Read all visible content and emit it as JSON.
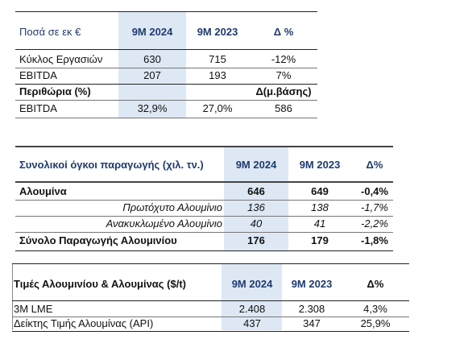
{
  "table1": {
    "header": {
      "label": "Ποσά σε εκ €",
      "col1": "9M 2024",
      "col2": "9M 2023",
      "col3": "Δ %"
    },
    "rows": [
      {
        "label": "Κύκλος Εργασιών",
        "v1": "630",
        "v2": "715",
        "v3": "-12%"
      },
      {
        "label": "EBITDA",
        "v1": "207",
        "v2": "193",
        "v3": "7%"
      }
    ],
    "subheader": {
      "label": "Περιθώρια (%)",
      "col3": "Δ(μ.βάσης)"
    },
    "margin_row": {
      "label": "EBITDA",
      "v1": "32,9%",
      "v2": "27,0%",
      "v3": "586"
    }
  },
  "table2": {
    "header": {
      "label": "Συνολικοί όγκοι παραγωγής (χιλ. τν.)",
      "col1": "9M 2024",
      "col2": "9M 2023",
      "col3": "Δ%"
    },
    "rows": [
      {
        "label": "Αλουμίνα",
        "v1": "646",
        "v2": "649",
        "v3": "-0,4%"
      },
      {
        "label": "Πρωτόχυτο Αλουμίνιο",
        "v1": "136",
        "v2": "138",
        "v3": "-1,7%"
      },
      {
        "label": "Ανακυκλωμένο Αλουμίνιο",
        "v1": "40",
        "v2": "41",
        "v3": "-2,2%"
      },
      {
        "label": "Σύνολο Παραγωγής Αλουμινίου",
        "v1": "176",
        "v2": "179",
        "v3": "-1,8%"
      }
    ]
  },
  "table3": {
    "header": {
      "label": "Τιμές Αλουμινίου & Αλουμίνας ($/t)",
      "col1": "9M 2024",
      "col2": "9M 2023",
      "col3": "Δ%"
    },
    "rows": [
      {
        "label": "3M LME",
        "v1": "2.408",
        "v2": "2.308",
        "v3": "4,3%"
      },
      {
        "label": "Δείκτης Τιμής Αλουμίνας (API)",
        "v1": "437",
        "v2": "347",
        "v3": "25,9%"
      }
    ]
  }
}
